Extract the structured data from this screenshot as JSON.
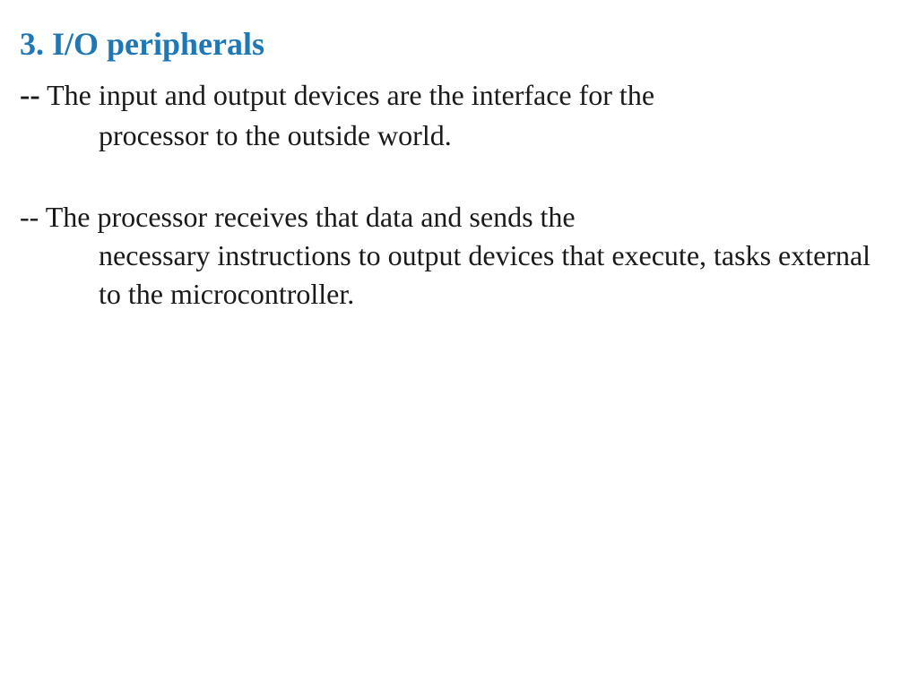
{
  "heading": {
    "text": "3. I/O peripherals",
    "color": "#1f77b4",
    "fontsize": 36,
    "fontweight": "bold"
  },
  "body": {
    "text_color": "#1a1a1a",
    "fontsize": 32,
    "bullets": [
      {
        "prefix": "--",
        "prefix_bold": true,
        "line1": " The input and output devices are the interface for the",
        "continuation": "processor to the outside world."
      },
      {
        "prefix": "--",
        "prefix_bold": false,
        "line1": " The processor receives that data and sends the",
        "continuation": "necessary instructions to output devices that execute, tasks external to the microcontroller."
      }
    ]
  },
  "background_color": "#ffffff"
}
